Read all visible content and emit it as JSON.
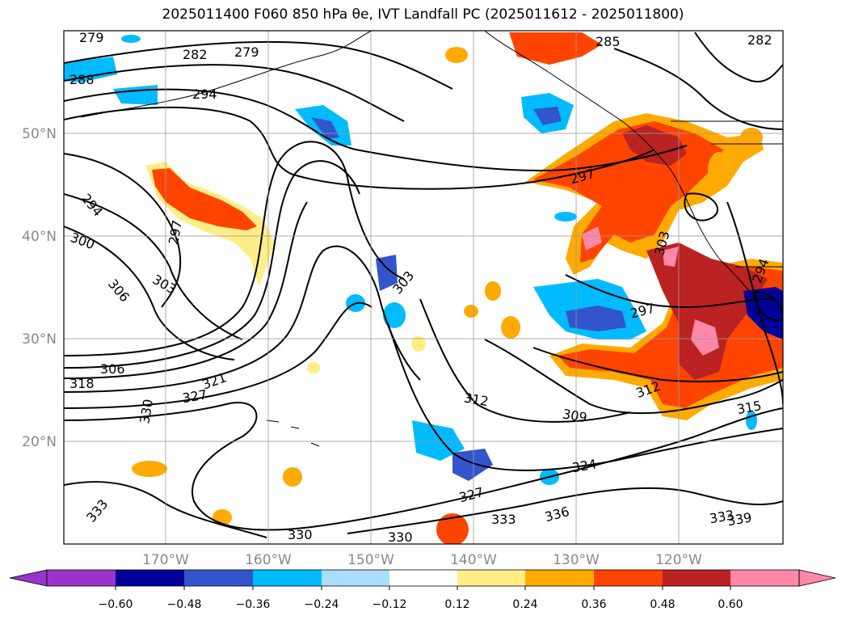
{
  "title": "2025011400 F060 850 hPa θe, IVT Landfall PC (2025011612 - 2025011800)",
  "map": {
    "lon_labels": [
      "170°W",
      "160°W",
      "150°W",
      "140°W",
      "130°W",
      "120°W"
    ],
    "lat_labels": [
      "50°N",
      "40°N",
      "30°N",
      "20°N"
    ],
    "contour_labels": [
      "279",
      "282",
      "279",
      "285",
      "282",
      "288",
      "294",
      "294",
      "297",
      "300",
      "306",
      "303",
      "303",
      "297",
      "297",
      "303",
      "306",
      "318",
      "321",
      "327",
      "330",
      "312",
      "309",
      "312",
      "315",
      "324",
      "327",
      "333",
      "336",
      "333",
      "339",
      "330",
      "330",
      "294",
      "333"
    ]
  },
  "colorbar": {
    "ticks": [
      "−0.60",
      "−0.48",
      "−0.36",
      "−0.24",
      "−0.12",
      "0.12",
      "0.24",
      "0.36",
      "0.48",
      "0.60"
    ],
    "colors": [
      "#9933cc",
      "#000099",
      "#3355cc",
      "#00bbff",
      "#aaddff",
      "#ffffff",
      "#ffee88",
      "#ffaa00",
      "#ff4400",
      "#bb2222",
      "#ff88aa"
    ]
  }
}
